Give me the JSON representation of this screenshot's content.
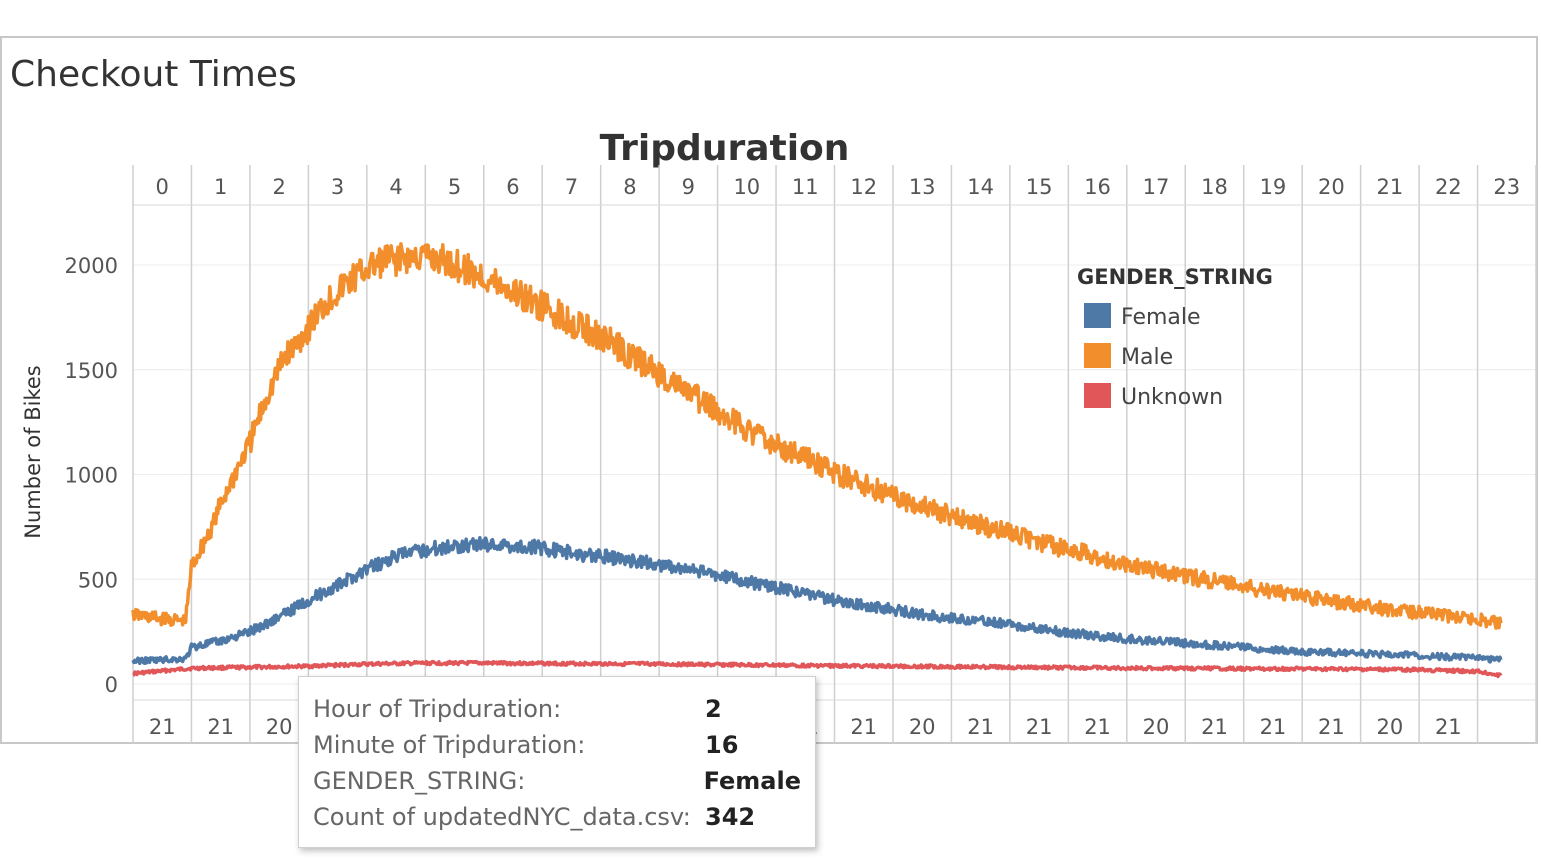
{
  "dashboard": {
    "title": "Checkout Times"
  },
  "chart_data": {
    "type": "line",
    "title": "Tripduration",
    "ylabel": "Number of Bikes",
    "ylim": [
      0,
      2300
    ],
    "yticks": [
      0,
      500,
      1000,
      1500,
      2000
    ],
    "hour_columns": [
      "0",
      "1",
      "2",
      "3",
      "4",
      "5",
      "6",
      "7",
      "8",
      "9",
      "10",
      "11",
      "12",
      "13",
      "14",
      "15",
      "16",
      "17",
      "18",
      "19",
      "20",
      "21",
      "22",
      "23"
    ],
    "bottom_labels": [
      "21",
      "21",
      "20",
      "",
      "",
      "",
      "",
      "",
      "",
      "",
      "",
      "21",
      "21",
      "20",
      "21",
      "21",
      "21",
      "20",
      "21",
      "21",
      "21",
      "20",
      "21",
      ""
    ],
    "legend": {
      "title": "GENDER_STRING",
      "position": "top-right",
      "entries": [
        {
          "name": "Female",
          "color": "#4e79a7"
        },
        {
          "name": "Male",
          "color": "#f28e2b"
        },
        {
          "name": "Unknown",
          "color": "#e15759"
        }
      ]
    },
    "x_unit": "hour of tripduration",
    "series": [
      {
        "name": "Female",
        "color": "#4e79a7",
        "x": [
          0,
          0.5,
          0.9,
          1.0,
          1.5,
          2,
          2.5,
          3,
          3.5,
          4,
          4.5,
          5,
          5.5,
          6,
          6.5,
          7,
          7.5,
          8,
          8.5,
          9,
          9.5,
          10,
          10.5,
          11,
          11.5,
          12,
          12.5,
          13,
          13.5,
          14,
          14.5,
          15,
          15.5,
          16,
          16.5,
          17,
          17.5,
          18,
          18.5,
          19,
          19.5,
          20,
          20.5,
          21,
          21.5,
          22,
          22.5,
          23,
          23.4
        ],
        "values": [
          110,
          115,
          120,
          175,
          205,
          250,
          320,
          400,
          470,
          550,
          610,
          640,
          660,
          670,
          660,
          650,
          625,
          610,
          590,
          570,
          545,
          520,
          490,
          460,
          430,
          400,
          375,
          355,
          330,
          315,
          300,
          285,
          265,
          245,
          230,
          215,
          205,
          195,
          185,
          175,
          165,
          155,
          150,
          145,
          140,
          135,
          130,
          125,
          115
        ]
      },
      {
        "name": "Male",
        "color": "#f28e2b",
        "x": [
          0,
          0.5,
          0.9,
          1.0,
          1.3,
          1.6,
          2,
          2.3,
          2.6,
          3,
          3.3,
          3.6,
          4,
          4.3,
          4.6,
          5,
          5.3,
          5.6,
          6,
          6.5,
          7,
          7.5,
          8,
          8.5,
          9,
          9.5,
          10,
          10.5,
          11,
          11.5,
          12,
          12.5,
          13,
          13.5,
          14,
          14.5,
          15,
          15.5,
          16,
          16.5,
          17,
          17.5,
          18,
          18.5,
          19,
          19.5,
          20,
          20.5,
          21,
          21.5,
          22,
          22.5,
          23,
          23.4
        ],
        "values": [
          330,
          310,
          300,
          560,
          720,
          920,
          1150,
          1380,
          1560,
          1700,
          1820,
          1900,
          1980,
          2020,
          2030,
          2040,
          2020,
          1990,
          1940,
          1870,
          1800,
          1730,
          1660,
          1570,
          1480,
          1390,
          1300,
          1220,
          1140,
          1080,
          1010,
          950,
          900,
          850,
          800,
          760,
          720,
          680,
          640,
          610,
          575,
          545,
          515,
          490,
          465,
          440,
          420,
          395,
          375,
          355,
          340,
          325,
          310,
          290
        ]
      },
      {
        "name": "Unknown",
        "color": "#e15759",
        "x": [
          0,
          1,
          2,
          3,
          4,
          5,
          6,
          7,
          8,
          9,
          10,
          11,
          12,
          13,
          14,
          15,
          16,
          17,
          18,
          19,
          20,
          21,
          22,
          23,
          23.4
        ],
        "values": [
          50,
          75,
          80,
          85,
          95,
          100,
          100,
          98,
          97,
          95,
          92,
          90,
          87,
          85,
          83,
          80,
          78,
          76,
          75,
          73,
          72,
          70,
          68,
          60,
          40
        ]
      }
    ]
  },
  "tooltip": {
    "rows": [
      {
        "label": "Hour of Tripduration:",
        "value": "2"
      },
      {
        "label": "Minute of Tripduration:",
        "value": "16"
      },
      {
        "label": "GENDER_STRING:",
        "value": "Female"
      },
      {
        "label": "Count of updatedNYC_data.csv:",
        "value": "342"
      }
    ]
  }
}
